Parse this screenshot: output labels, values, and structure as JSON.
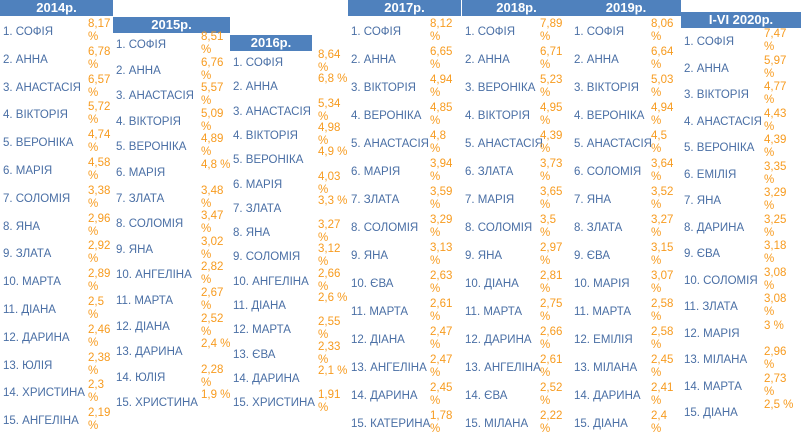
{
  "columns": [
    {
      "year": "2014р.",
      "rows": [
        {
          "name": "1. СОФІЯ",
          "pct": [
            "8,17",
            "%"
          ]
        },
        {
          "name": "2. АННА",
          "pct": [
            "6,78",
            "%"
          ]
        },
        {
          "name": "3. АНАСТАСІЯ",
          "pct": [
            "6,57",
            "%"
          ]
        },
        {
          "name": "4. ВІКТОРІЯ",
          "pct": [
            "5,72",
            "%"
          ]
        },
        {
          "name": "5. ВЕРОНІКА",
          "pct": [
            "4,74",
            "%"
          ]
        },
        {
          "name": "6. МАРІЯ",
          "pct": [
            "4,58",
            "%"
          ]
        },
        {
          "name": "7. СОЛОМІЯ",
          "pct": [
            "3,38",
            "%"
          ]
        },
        {
          "name": "8. ЯНА",
          "pct": [
            "2,96",
            "%"
          ]
        },
        {
          "name": "9. ЗЛАТА",
          "pct": [
            "2,92",
            "%"
          ]
        },
        {
          "name": "10. МАРТА",
          "pct": [
            "2,89",
            "%"
          ]
        },
        {
          "name": "11. ДІАНА",
          "pct": [
            "2,5",
            "%"
          ]
        },
        {
          "name": "12. ДАРИНА",
          "pct": [
            "2,46",
            "%"
          ]
        },
        {
          "name": "13. ЮЛІЯ",
          "pct": [
            "2,38",
            "%"
          ]
        },
        {
          "name": "14. ХРИСТИНА",
          "pct": [
            "2,3",
            "%"
          ]
        },
        {
          "name": "15. АНГЕЛІНА",
          "pct": [
            "2,19",
            "%"
          ]
        }
      ]
    },
    {
      "year": "2015р.",
      "rows": [
        {
          "name": "1. СОФІЯ",
          "pct": [
            "8,51",
            "%"
          ]
        },
        {
          "name": "2. АННА",
          "pct": [
            "6,76",
            "%"
          ]
        },
        {
          "name": "3. АНАСТАСІЯ",
          "pct": [
            "5,57",
            "%"
          ]
        },
        {
          "name": "4. ВІКТОРІЯ",
          "pct": [
            "5,09",
            "%"
          ]
        },
        {
          "name": "5. ВЕРОНІКА",
          "pct": [
            "4,89",
            "%"
          ]
        },
        {
          "name": "6. МАРІЯ",
          "pct": [
            "4,8 %"
          ]
        },
        {
          "name": "7. ЗЛАТА",
          "pct": [
            "3,48",
            "%"
          ]
        },
        {
          "name": "8. СОЛОМІЯ",
          "pct": [
            "3,47",
            "%"
          ]
        },
        {
          "name": "9. ЯНА",
          "pct": [
            "3,02",
            "%"
          ]
        },
        {
          "name": "10. АНГЕЛІНА",
          "pct": [
            "2,82",
            "%"
          ]
        },
        {
          "name": "11. МАРТА",
          "pct": [
            "2,67",
            "%"
          ]
        },
        {
          "name": "12. ДІАНА",
          "pct": [
            "2,52",
            "%"
          ]
        },
        {
          "name": "13. ДАРИНА",
          "pct": [
            "2,4 %"
          ]
        },
        {
          "name": "14. ЮЛІЯ",
          "pct": [
            "2,28",
            "%"
          ]
        },
        {
          "name": "15. ХРИСТИНА",
          "pct": [
            "1,9 %"
          ]
        }
      ]
    },
    {
      "year": "2016р.",
      "rows": [
        {
          "name": "1. СОФІЯ",
          "pct": [
            "8,64",
            "%"
          ]
        },
        {
          "name": "2. АННА",
          "pct": [
            "6,8 %"
          ]
        },
        {
          "name": "3. АНАСТАСІЯ",
          "pct": [
            "5,34",
            "%"
          ]
        },
        {
          "name": "4. ВІКТОРІЯ",
          "pct": [
            "4,98",
            "%"
          ]
        },
        {
          "name": "5. ВЕРОНІКА",
          "pct": [
            "4,9 %"
          ]
        },
        {
          "name": "6. МАРІЯ",
          "pct": [
            "4,03",
            "%"
          ]
        },
        {
          "name": "7. ЗЛАТА",
          "pct": [
            "3,3 %"
          ]
        },
        {
          "name": "8. ЯНА",
          "pct": [
            "3,27",
            "%"
          ]
        },
        {
          "name": "9. СОЛОМІЯ",
          "pct": [
            "3,12",
            "%"
          ]
        },
        {
          "name": "10. АНГЕЛІНА",
          "pct": [
            "2,66",
            "%"
          ]
        },
        {
          "name": "11. ДІАНА",
          "pct": [
            "2,6 %"
          ]
        },
        {
          "name": "12. МАРТА",
          "pct": [
            "2,55",
            "%"
          ]
        },
        {
          "name": "13. ЄВА",
          "pct": [
            "2,33",
            "%"
          ]
        },
        {
          "name": "14. ДАРИНА",
          "pct": [
            "2,1 %"
          ]
        },
        {
          "name": "15. ХРИСТИНА",
          "pct": [
            "1,91",
            "%"
          ]
        }
      ]
    },
    {
      "year": "2017р.",
      "rows": [
        {
          "name": "1. СОФІЯ",
          "pct": [
            "8,12",
            "%"
          ]
        },
        {
          "name": "2. АННА",
          "pct": [
            "6,65",
            "%"
          ]
        },
        {
          "name": "3. ВІКТОРІЯ",
          "pct": [
            "4,94",
            "%"
          ]
        },
        {
          "name": "4. ВЕРОНІКА",
          "pct": [
            "4,85",
            "%"
          ]
        },
        {
          "name": "5. АНАСТАСІЯ",
          "pct": [
            "4,8",
            "%"
          ]
        },
        {
          "name": "6. МАРІЯ",
          "pct": [
            "3,94",
            "%"
          ]
        },
        {
          "name": "7. ЗЛАТА",
          "pct": [
            "3,59",
            "%"
          ]
        },
        {
          "name": "8. СОЛОМІЯ",
          "pct": [
            "3,29",
            "%"
          ]
        },
        {
          "name": "9. ЯНА",
          "pct": [
            "3,13",
            "%"
          ]
        },
        {
          "name": "10. ЄВА",
          "pct": [
            "2,63",
            "%"
          ]
        },
        {
          "name": "11. МАРТА",
          "pct": [
            "2,61",
            "%"
          ]
        },
        {
          "name": "12. ДІАНА",
          "pct": [
            "2,47",
            "%"
          ]
        },
        {
          "name": "13. АНГЕЛІНА",
          "pct": [
            "2,47",
            "%"
          ]
        },
        {
          "name": "14. ДАРИНА",
          "pct": [
            "2,45",
            "%"
          ]
        },
        {
          "name": "15. КАТЕРИНА",
          "pct": [
            "1,78",
            "%"
          ]
        }
      ]
    },
    {
      "year": "2018р.",
      "rows": [
        {
          "name": "1. СОФІЯ",
          "pct": [
            "7,89",
            "%"
          ]
        },
        {
          "name": "2. АННА",
          "pct": [
            "6,71",
            "%"
          ]
        },
        {
          "name": "3. ВЕРОНІКА",
          "pct": [
            "5,23",
            "%"
          ]
        },
        {
          "name": "4. ВІКТОРІЯ",
          "pct": [
            "4,95",
            "%"
          ]
        },
        {
          "name": "5. АНАСТАСІЯ",
          "pct": [
            "4,39",
            "%"
          ]
        },
        {
          "name": "6. ЗЛАТА",
          "pct": [
            "3,73",
            "%"
          ]
        },
        {
          "name": "7. МАРІЯ",
          "pct": [
            "3,65",
            "%"
          ]
        },
        {
          "name": "8. СОЛОМІЯ",
          "pct": [
            "3,5",
            "%"
          ]
        },
        {
          "name": "9. ЯНА",
          "pct": [
            "2,97",
            "%"
          ]
        },
        {
          "name": "10. ДІАНА",
          "pct": [
            "2,81",
            "%"
          ]
        },
        {
          "name": "11. МАРТА",
          "pct": [
            "2,75",
            "%"
          ]
        },
        {
          "name": "12. ДАРИНА",
          "pct": [
            "2,66",
            "%"
          ]
        },
        {
          "name": "13. АНГЕЛІНА",
          "pct": [
            "2,61",
            "%"
          ]
        },
        {
          "name": "14. ЄВА",
          "pct": [
            "2,52",
            "%"
          ]
        },
        {
          "name": "15. МІЛАНА",
          "pct": [
            "2,22",
            "%"
          ]
        }
      ]
    },
    {
      "year": "2019р.",
      "rows": [
        {
          "name": "1. СОФІЯ",
          "pct": [
            "8,06",
            "%"
          ]
        },
        {
          "name": "2. АННА",
          "pct": [
            "6,64",
            "%"
          ]
        },
        {
          "name": "3. ВІКТОРІЯ",
          "pct": [
            "5,03",
            "%"
          ]
        },
        {
          "name": "4. ВЕРОНІКА",
          "pct": [
            "4,94",
            "%"
          ]
        },
        {
          "name": "5. АНАСТАСІЯ",
          "pct": [
            "4,5",
            "%"
          ]
        },
        {
          "name": "6. СОЛОМІЯ",
          "pct": [
            "3,64",
            "%"
          ]
        },
        {
          "name": "7. ЯНА",
          "pct": [
            "3,52",
            "%"
          ]
        },
        {
          "name": "8. ЗЛАТА",
          "pct": [
            "3,27",
            "%"
          ]
        },
        {
          "name": "9. ЄВА",
          "pct": [
            "3,15",
            "%"
          ]
        },
        {
          "name": "10. МАРІЯ",
          "pct": [
            "3,07",
            "%"
          ]
        },
        {
          "name": "11. МАРТА",
          "pct": [
            "2,58",
            "%"
          ]
        },
        {
          "name": "12. ЕМІЛІЯ",
          "pct": [
            "2,58",
            "%"
          ]
        },
        {
          "name": "13. МІЛАНА",
          "pct": [
            "2,45",
            "%"
          ]
        },
        {
          "name": "14. ДАРИНА",
          "pct": [
            "2,41",
            "%"
          ]
        },
        {
          "name": "15. ДІАНА",
          "pct": [
            "2,4",
            "%"
          ]
        }
      ]
    },
    {
      "year": "I-VI 2020р.",
      "rows": [
        {
          "name": "1. СОФІЯ",
          "pct": [
            "7,47",
            "%"
          ]
        },
        {
          "name": "2. АННА",
          "pct": [
            "5,97",
            "%"
          ]
        },
        {
          "name": "3. ВІКТОРІЯ",
          "pct": [
            "4,77",
            "%"
          ]
        },
        {
          "name": "4. АНАСТАСІЯ",
          "pct": [
            "4,43",
            "%"
          ]
        },
        {
          "name": "5. ВЕРОНІКА",
          "pct": [
            "4,39",
            "%"
          ]
        },
        {
          "name": "6. ЕМІЛІЯ",
          "pct": [
            "3,35",
            "%"
          ]
        },
        {
          "name": "7. ЯНА",
          "pct": [
            "3,29",
            "%"
          ]
        },
        {
          "name": "8. ДАРИНА",
          "pct": [
            "3,25",
            "%"
          ]
        },
        {
          "name": "9. ЄВА",
          "pct": [
            "3,18",
            "%"
          ]
        },
        {
          "name": "10. СОЛОМІЯ",
          "pct": [
            "3,08",
            "%"
          ]
        },
        {
          "name": "11. ЗЛАТА",
          "pct": [
            "3,08",
            "%"
          ]
        },
        {
          "name": "12. МАРІЯ",
          "pct": [
            "3 %"
          ]
        },
        {
          "name": "13. МІЛАНА",
          "pct": [
            "2,96",
            "%"
          ]
        },
        {
          "name": "14. МАРТА",
          "pct": [
            "2,73",
            "%"
          ]
        },
        {
          "name": "15. ДІАНА",
          "pct": [
            "2,5 %"
          ]
        }
      ]
    }
  ]
}
